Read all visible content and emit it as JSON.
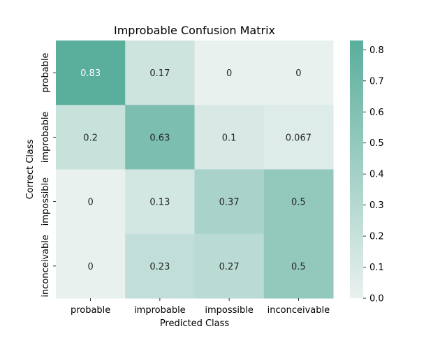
{
  "chart_data": {
    "type": "heatmap",
    "title": "Improbable Confusion Matrix",
    "xlabel": "Predicted Class",
    "ylabel": "Correct Class",
    "x_categories": [
      "probable",
      "improbable",
      "impossible",
      "inconceivable"
    ],
    "y_categories": [
      "probable",
      "improbable",
      "impossible",
      "inconceivable"
    ],
    "values": [
      [
        0.83,
        0.17,
        0,
        0
      ],
      [
        0.2,
        0.63,
        0.1,
        0.067
      ],
      [
        0,
        0.13,
        0.37,
        0.5
      ],
      [
        0,
        0.23,
        0.27,
        0.5
      ]
    ],
    "vmin": 0,
    "vmax": 0.83,
    "colorbar_ticks": [
      "0.0",
      "0.1",
      "0.2",
      "0.3",
      "0.4",
      "0.5",
      "0.6",
      "0.7",
      "0.8"
    ],
    "colors": {
      "low": "#e9f1ef",
      "high": "#5aae9c"
    },
    "annotation_colors": {
      "dark_text": "#262626",
      "light_text": "#ffffff"
    }
  }
}
